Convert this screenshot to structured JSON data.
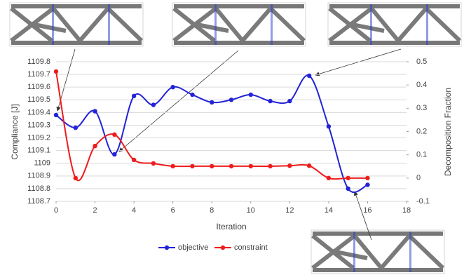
{
  "chart_data": {
    "type": "line",
    "x_label": "Iteration",
    "y_label": "Compliance [J]",
    "y2_label": "Decomposition Fraction",
    "x": [
      0,
      1,
      2,
      3,
      4,
      5,
      6,
      7,
      8,
      9,
      10,
      11,
      12,
      13,
      14,
      15,
      16
    ],
    "series": [
      {
        "name": "objective",
        "color": "#2323d8",
        "axis": "y",
        "values": [
          1109.38,
          1109.28,
          1109.41,
          1109.07,
          1109.53,
          1109.46,
          1109.6,
          1109.54,
          1109.48,
          1109.5,
          1109.54,
          1109.49,
          1109.49,
          1109.69,
          1109.29,
          1108.8,
          1108.83
        ]
      },
      {
        "name": "constraint",
        "color": "#ee1c1c",
        "axis": "y2",
        "values": [
          0.458,
          0.0,
          0.138,
          0.187,
          0.078,
          0.063,
          0.051,
          0.051,
          0.051,
          0.051,
          0.051,
          0.051,
          0.053,
          0.053,
          0.0,
          0.0,
          0.0
        ]
      }
    ],
    "xlim": [
      0,
      18
    ],
    "xticks": [
      0,
      2,
      4,
      6,
      8,
      10,
      12,
      14,
      16,
      18
    ],
    "ylim": [
      1108.7,
      1109.8
    ],
    "yticks": [
      1108.7,
      1108.8,
      1108.9,
      1109,
      1109.1,
      1109.2,
      1109.3,
      1109.4,
      1109.5,
      1109.6,
      1109.7,
      1109.8
    ],
    "y2lim": [
      -0.1,
      0.5
    ],
    "y2ticks": [
      -0.1,
      0,
      0.1,
      0.2,
      0.3,
      0.4,
      0.5
    ],
    "grid": true,
    "legend": "bottom"
  }
}
